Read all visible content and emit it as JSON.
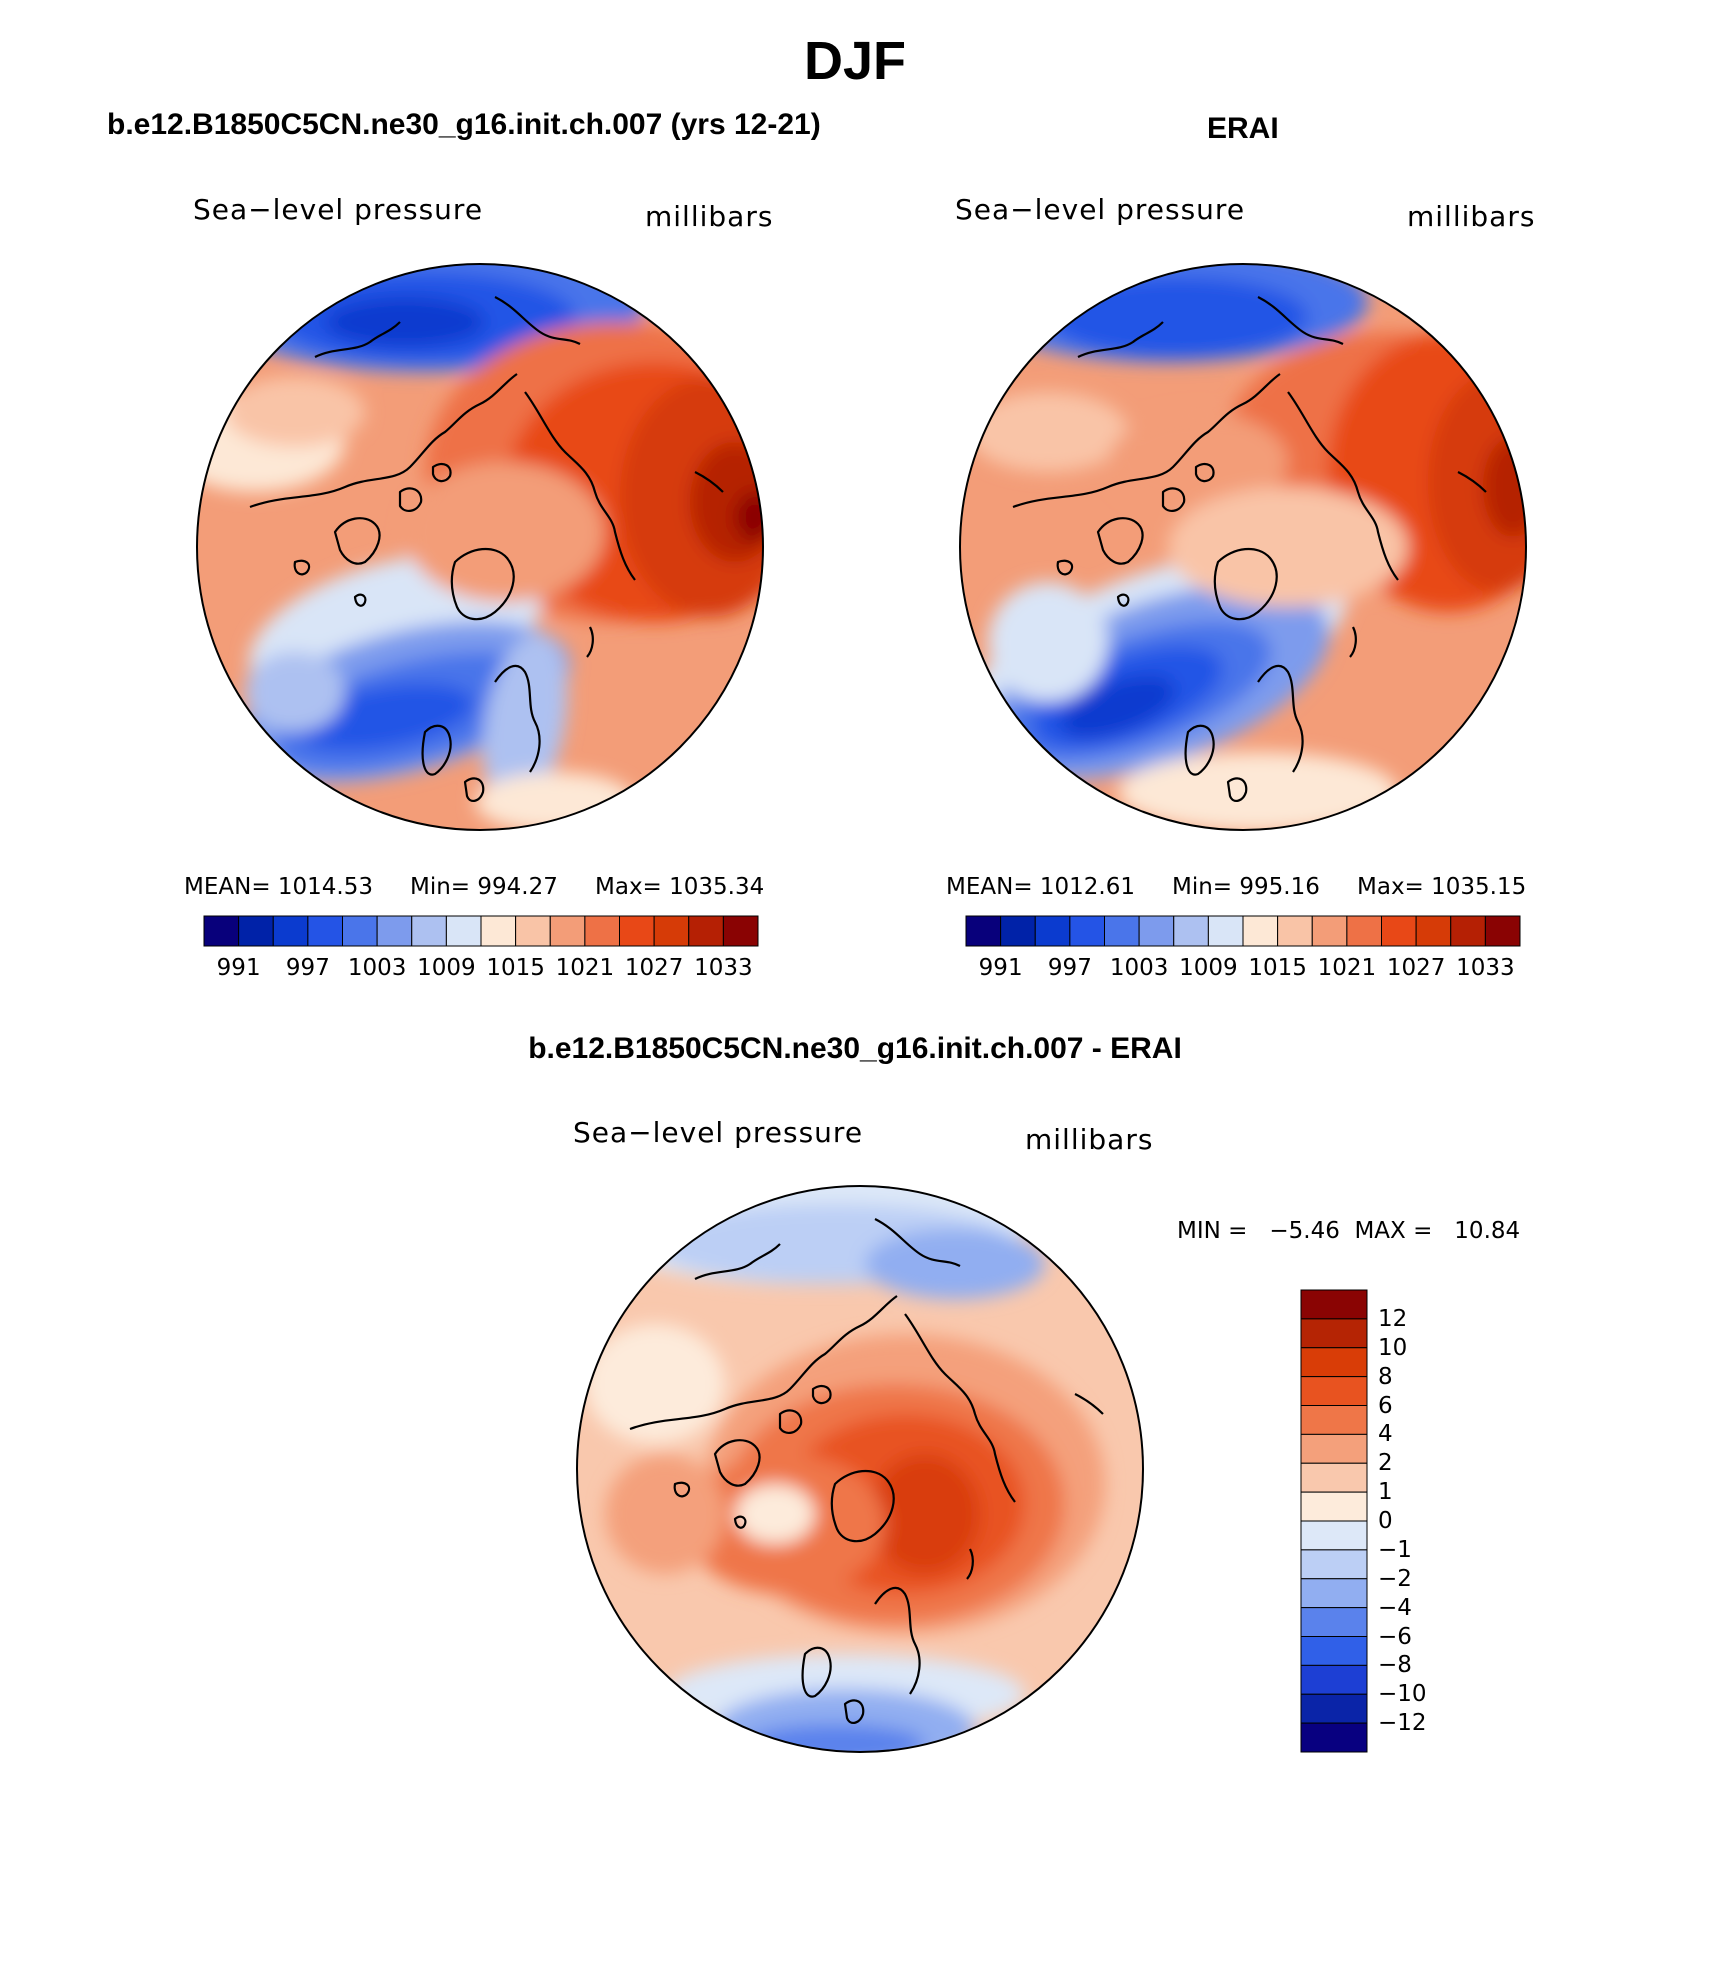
{
  "title": "DJF",
  "panels": [
    {
      "title": "b.e12.B1850C5CN.ne30_g16.init.ch.007 (yrs 12-21)",
      "variable": "Sea−level pressure",
      "units": "millibars",
      "stats": {
        "mean": "MEAN=  1014.53",
        "min": "Min=  994.27",
        "max": "Max=  1035.34"
      }
    },
    {
      "title": "ERAI",
      "variable": "Sea−level pressure",
      "units": "millibars",
      "stats": {
        "mean": "MEAN=  1012.61",
        "min": "Min=  995.16",
        "max": "Max=  1035.15"
      }
    },
    {
      "title": "b.e12.B1850C5CN.ne30_g16.init.ch.007 - ERAI",
      "variable": "Sea−level pressure",
      "units": "millibars",
      "stats": {
        "minmax": "MIN =   −5.46  MAX =   10.84"
      }
    }
  ],
  "chart_data": [
    {
      "type": "heatmap",
      "title": "b.e12.B1850C5CN.ne30_g16.init.ch.007 (yrs 12-21)",
      "projection": "north polar stereographic",
      "variable": "Sea-level pressure",
      "units": "millibars",
      "mean": 1014.53,
      "min": 994.27,
      "max": 1035.34,
      "colorbar_ticks": [
        "991",
        "997",
        "1003",
        "1009",
        "1015",
        "1021",
        "1027",
        "1033"
      ],
      "contour_levels": [
        988,
        991,
        994,
        997,
        1000,
        1003,
        1006,
        1009,
        1012,
        1015,
        1018,
        1021,
        1024,
        1027,
        1030,
        1033,
        1036
      ]
    },
    {
      "type": "heatmap",
      "title": "ERAI",
      "projection": "north polar stereographic",
      "variable": "Sea-level pressure",
      "units": "millibars",
      "mean": 1012.61,
      "min": 995.16,
      "max": 1035.15,
      "colorbar_ticks": [
        "991",
        "997",
        "1003",
        "1009",
        "1015",
        "1021",
        "1027",
        "1033"
      ],
      "contour_levels": [
        988,
        991,
        994,
        997,
        1000,
        1003,
        1006,
        1009,
        1012,
        1015,
        1018,
        1021,
        1024,
        1027,
        1030,
        1033,
        1036
      ]
    },
    {
      "type": "heatmap",
      "title": "b.e12.B1850C5CN.ne30_g16.init.ch.007 - ERAI",
      "projection": "north polar stereographic",
      "variable": "Sea-level pressure difference",
      "units": "millibars",
      "min": -5.46,
      "max": 10.84,
      "colorbar_ticks": [
        "12",
        "10",
        "8",
        "6",
        "4",
        "2",
        "1",
        "0",
        "−1",
        "−2",
        "−4",
        "−6",
        "−8",
        "−10",
        "−12"
      ]
    }
  ],
  "palette": {
    "abs": [
      "#08007b",
      "#0022a8",
      "#0b3bcf",
      "#2454e6",
      "#4a75ea",
      "#7d9bed",
      "#adc1f1",
      "#d9e5f7",
      "#fde8d6",
      "#f9c4a7",
      "#f39d78",
      "#ee7146",
      "#e84817",
      "#d63b07",
      "#b52004",
      "#8a0303"
    ],
    "diff": [
      "#080080",
      "#0a24a8",
      "#1d3fd4",
      "#3060e8",
      "#5a82ec",
      "#91aef1",
      "#bccff5",
      "#dde8f8",
      "#fdebdb",
      "#f9c8ad",
      "#f4a07b",
      "#ef7648",
      "#e85320",
      "#d93d07",
      "#b52404",
      "#8a0403"
    ]
  }
}
